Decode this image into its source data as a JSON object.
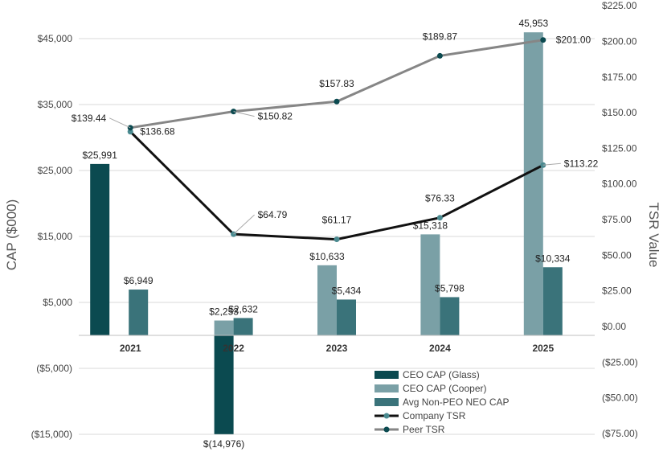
{
  "chart_data": {
    "type": "bar",
    "categories": [
      "2021",
      "2022",
      "2023",
      "2024",
      "2025"
    ],
    "ylabel": "CAP ($000)",
    "y2label": "TSR Value",
    "ylim": [
      -15000,
      50000
    ],
    "y2lim": [
      -75,
      225
    ],
    "left_ticks": [
      {
        "value": -15000,
        "label": "($15,000)"
      },
      {
        "value": -5000,
        "label": "($5,000)"
      },
      {
        "value": 5000,
        "label": "$5,000"
      },
      {
        "value": 15000,
        "label": "$15,000"
      },
      {
        "value": 25000,
        "label": "$25,000"
      },
      {
        "value": 35000,
        "label": "$35,000"
      },
      {
        "value": 45000,
        "label": "$45,000"
      }
    ],
    "right_ticks": [
      {
        "value": -75,
        "label": "($75.00)"
      },
      {
        "value": -50,
        "label": "($50.00)"
      },
      {
        "value": -25,
        "label": "($25.00)"
      },
      {
        "value": 0,
        "label": "$0.00"
      },
      {
        "value": 25,
        "label": "$25.00"
      },
      {
        "value": 50,
        "label": "$50.00"
      },
      {
        "value": 75,
        "label": "$75.00"
      },
      {
        "value": 100,
        "label": "$100.00"
      },
      {
        "value": 125,
        "label": "$125.00"
      },
      {
        "value": 150,
        "label": "$150.00"
      },
      {
        "value": 175,
        "label": "$175.00"
      },
      {
        "value": 200,
        "label": "$200.00"
      },
      {
        "value": 225,
        "label": "$225.00"
      }
    ],
    "bar_series": [
      {
        "name": "CEO CAP (Glass)",
        "color": "#0b4a50",
        "values": [
          25991,
          -14976,
          null,
          null,
          null
        ],
        "labels": [
          "$25,991",
          "$(14,976)",
          "",
          "",
          ""
        ]
      },
      {
        "name": "CEO CAP (Cooper)",
        "color": "#7aa0a6",
        "values": [
          null,
          2253,
          10633,
          15318,
          45953
        ],
        "labels": [
          "",
          "$2,253",
          "$10,633",
          "$15,318",
          "45,953"
        ]
      },
      {
        "name": "Avg Non-PEO NEO CAP",
        "color": "#3a737a",
        "values": [
          6949,
          2632,
          5434,
          5798,
          10334
        ],
        "labels": [
          "$6,949",
          "$2,632",
          "$5,434",
          "$5,798",
          "$10,334"
        ]
      }
    ],
    "line_series": [
      {
        "name": "Company TSR",
        "color": "#111111",
        "marker": "#4a8a90",
        "values": [
          136.68,
          64.79,
          61.17,
          76.33,
          113.22
        ],
        "labels": [
          "$136.68",
          "$64.79",
          "$61.17",
          "$76.33",
          "$113.22"
        ]
      },
      {
        "name": "Peer TSR",
        "color": "#868686",
        "marker": "#0b4a50",
        "values": [
          139.44,
          150.82,
          157.83,
          189.87,
          201.0
        ],
        "labels": [
          "$139.44",
          "$150.82",
          "$157.83",
          "$189.87",
          "$201.00"
        ]
      }
    ],
    "legend_position": "bottom-right"
  }
}
